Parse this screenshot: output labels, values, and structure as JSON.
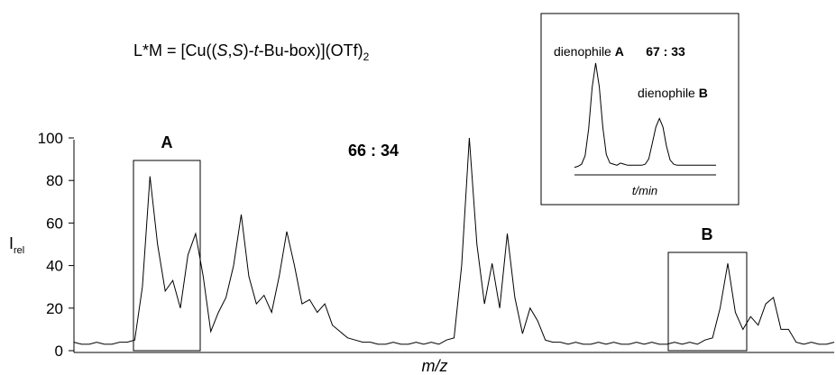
{
  "formula": {
    "lhs": "L*M = [Cu((",
    "s1": "S",
    "comma": ",",
    "s2": "S",
    "mid1": ")-",
    "t": "t",
    "mid2": "-Bu-box)](OTf)",
    "sub": "2"
  },
  "ratio_main": "66 : 34",
  "box_labels": {
    "a": "A",
    "b": "B"
  },
  "axes": {
    "ylabel_main": "I",
    "ylabel_sub": "rel",
    "xlabel": "m/z",
    "yticks": [
      "0",
      "20",
      "40",
      "60",
      "80",
      "100"
    ]
  },
  "inset": {
    "label_a_prefix": "dienophile ",
    "label_a_letter": "A",
    "ratio": "67 : 33",
    "label_b_prefix": "dienophile ",
    "label_b_letter": "B",
    "xlabel": "t/min"
  },
  "chart_data": [
    {
      "type": "line",
      "ylim": [
        0,
        100
      ],
      "grid": false,
      "series": [
        {
          "x": [
            0,
            1,
            2,
            3,
            4,
            5,
            6,
            7,
            8,
            9,
            10,
            11,
            12,
            13,
            14,
            15,
            16,
            17,
            18,
            19,
            20,
            21,
            22,
            23,
            24,
            25,
            26,
            27,
            28,
            29,
            30,
            31,
            32,
            33,
            34,
            35,
            36,
            37,
            38,
            39,
            40,
            41,
            42,
            43,
            44,
            45,
            46,
            47,
            48,
            49,
            50,
            51,
            52,
            53,
            54,
            55,
            56,
            57,
            58,
            59,
            60,
            61,
            62,
            63,
            64,
            65,
            66,
            67,
            68,
            69,
            70,
            71,
            72,
            73,
            74,
            75,
            76,
            77,
            78,
            79,
            80,
            81,
            82,
            83,
            84,
            85,
            86,
            87,
            88,
            89,
            90,
            91,
            92,
            93,
            94,
            95,
            96,
            97,
            98,
            99,
            100
          ],
          "y": [
            4,
            3,
            3,
            4,
            3,
            3,
            4,
            4,
            5,
            30,
            82,
            50,
            28,
            33,
            20,
            45,
            55,
            35,
            9,
            18,
            25,
            40,
            64,
            35,
            22,
            26,
            18,
            35,
            56,
            40,
            22,
            24,
            18,
            22,
            12,
            9,
            6,
            5,
            4,
            4,
            3,
            3,
            4,
            3,
            3,
            4,
            3,
            4,
            3,
            5,
            6,
            40,
            100,
            50,
            22,
            41,
            20,
            55,
            25,
            8,
            20,
            14,
            5,
            4,
            4,
            3,
            4,
            3,
            3,
            4,
            3,
            4,
            3,
            3,
            4,
            3,
            4,
            3,
            3,
            4,
            3,
            4,
            3,
            5,
            6,
            20,
            41,
            18,
            10,
            16,
            12,
            22,
            25,
            10,
            10,
            4,
            3,
            4,
            3,
            3,
            4
          ]
        }
      ],
      "annotations": [
        "A",
        "B",
        "66 : 34"
      ]
    },
    {
      "type": "line",
      "series": [
        {
          "x": [
            0,
            1,
            2,
            3,
            4,
            5,
            6,
            7,
            8,
            9,
            10,
            11,
            12,
            13,
            14,
            15,
            16,
            17,
            18,
            19,
            20,
            21,
            22,
            23,
            24,
            25,
            26,
            27,
            28,
            29,
            30,
            31,
            32,
            33,
            34,
            35,
            36,
            37,
            38,
            39,
            40
          ],
          "y": [
            2,
            3,
            5,
            13,
            38,
            77,
            100,
            78,
            40,
            14,
            6,
            5,
            4,
            6,
            5,
            4,
            4,
            4,
            4,
            4,
            5,
            10,
            25,
            40,
            48,
            40,
            22,
            9,
            5,
            4,
            4,
            4,
            4,
            4,
            4,
            4,
            4,
            4,
            4,
            4,
            4
          ]
        }
      ],
      "xlabel": "t/min",
      "annotations": [
        "dienophile A",
        "67 : 33",
        "dienophile B"
      ]
    }
  ]
}
